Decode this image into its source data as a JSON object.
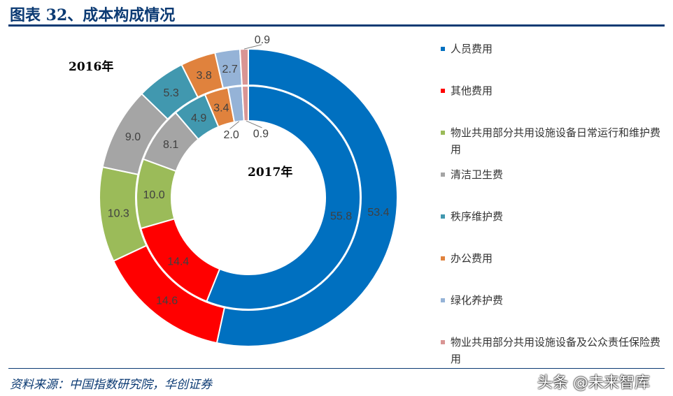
{
  "title": "图表 32、成本构成情况",
  "source": "资料来源：中国指数研究院，华创证券",
  "watermark": "头条 @未来智库",
  "chart_data": {
    "type": "donut",
    "title": "图表 32、成本构成情况",
    "categories": [
      "人员费用",
      "其他费用",
      "物业共用部分共用设施设备日常运行和维护费用",
      "清洁卫生费",
      "秩序维护费",
      "办公费用",
      "绿化养护费",
      "物业共用部分共用设施设备及公众责任保险费用"
    ],
    "colors": [
      "#0070C0",
      "#FF0000",
      "#9BBB59",
      "#A5A5A5",
      "#4198AF",
      "#E0823D",
      "#95B3D7",
      "#D99594"
    ],
    "series": [
      {
        "name": "2016年",
        "ring": "outer",
        "values": [
          53.4,
          14.6,
          10.3,
          9.0,
          5.3,
          3.8,
          2.7,
          0.9
        ]
      },
      {
        "name": "2017年",
        "ring": "inner",
        "values": [
          55.8,
          14.4,
          10.0,
          8.1,
          4.9,
          3.4,
          2.0,
          0.9
        ]
      }
    ],
    "legend_placement": "right"
  }
}
